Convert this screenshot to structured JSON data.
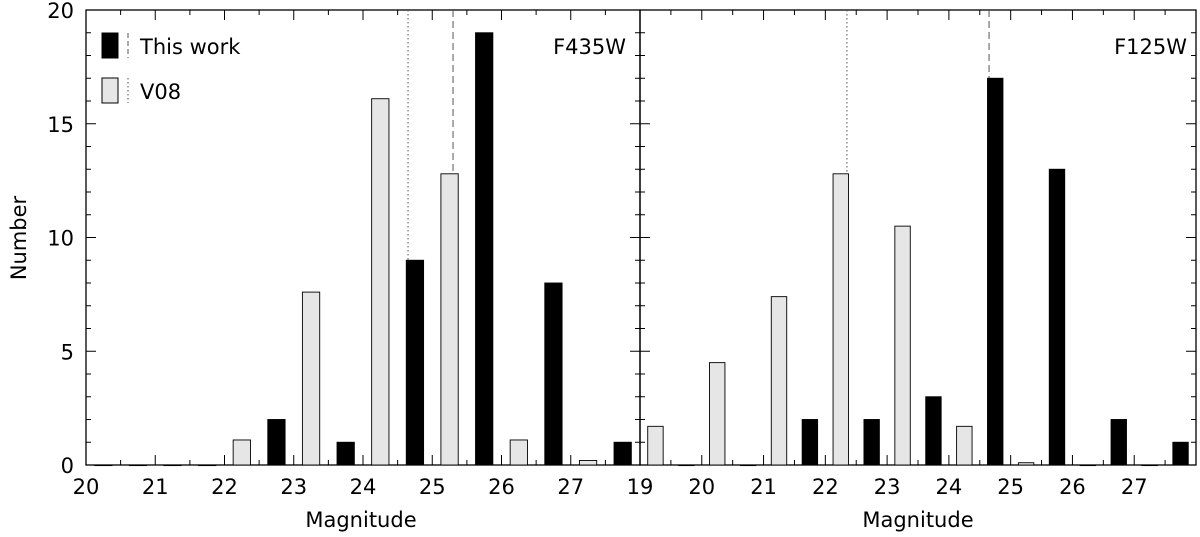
{
  "figure": {
    "ylabel": "Number",
    "legend": {
      "placement": "top-left of left panel",
      "entries": [
        {
          "label": "This work",
          "fill": "#000000",
          "line": "dashed"
        },
        {
          "label": "V08",
          "fill": "#e6e6e6",
          "line": "dotted"
        }
      ]
    }
  },
  "chart_data": [
    {
      "type": "bar",
      "title": "F435W",
      "xlabel": "Magnitude",
      "ylabel": "Number",
      "xlim": [
        20,
        28
      ],
      "ylim": [
        0,
        20
      ],
      "xticks": [
        "20",
        "21",
        "22",
        "23",
        "24",
        "25",
        "26",
        "27"
      ],
      "yticks": [
        "0",
        "5",
        "10",
        "15",
        "20"
      ],
      "bin_centers": [
        20.5,
        21.5,
        22.5,
        23.5,
        24.5,
        25.5,
        26.5,
        27.5
      ],
      "series": [
        {
          "name": "This work",
          "color": "#000000",
          "values": [
            0,
            0,
            2,
            1,
            9,
            19,
            8,
            1
          ],
          "median": 25.3
        },
        {
          "name": "V08",
          "color": "#e6e6e6",
          "values": [
            0,
            0,
            1.1,
            7.6,
            16.1,
            12.8,
            1.1,
            0.2
          ],
          "median": 24.65
        }
      ]
    },
    {
      "type": "bar",
      "title": "F125W",
      "xlabel": "Magnitude",
      "ylabel": "Number",
      "xlim": [
        19,
        28
      ],
      "ylim": [
        0,
        20
      ],
      "xticks": [
        "19",
        "20",
        "21",
        "22",
        "23",
        "24",
        "25",
        "26",
        "27"
      ],
      "yticks": [
        "0",
        "5",
        "10",
        "15",
        "20"
      ],
      "bin_centers": [
        19.5,
        20.5,
        21.5,
        22.5,
        23.5,
        24.5,
        25.5,
        26.5,
        27.5
      ],
      "series": [
        {
          "name": "This work",
          "color": "#000000",
          "values": [
            0,
            0,
            2,
            2,
            3,
            17,
            13,
            2,
            1
          ],
          "median": 24.65
        },
        {
          "name": "V08",
          "color": "#e6e6e6",
          "values": [
            1.7,
            4.5,
            7.4,
            12.8,
            10.5,
            1.7,
            0.1,
            0,
            0
          ],
          "median": 22.35
        }
      ]
    }
  ]
}
